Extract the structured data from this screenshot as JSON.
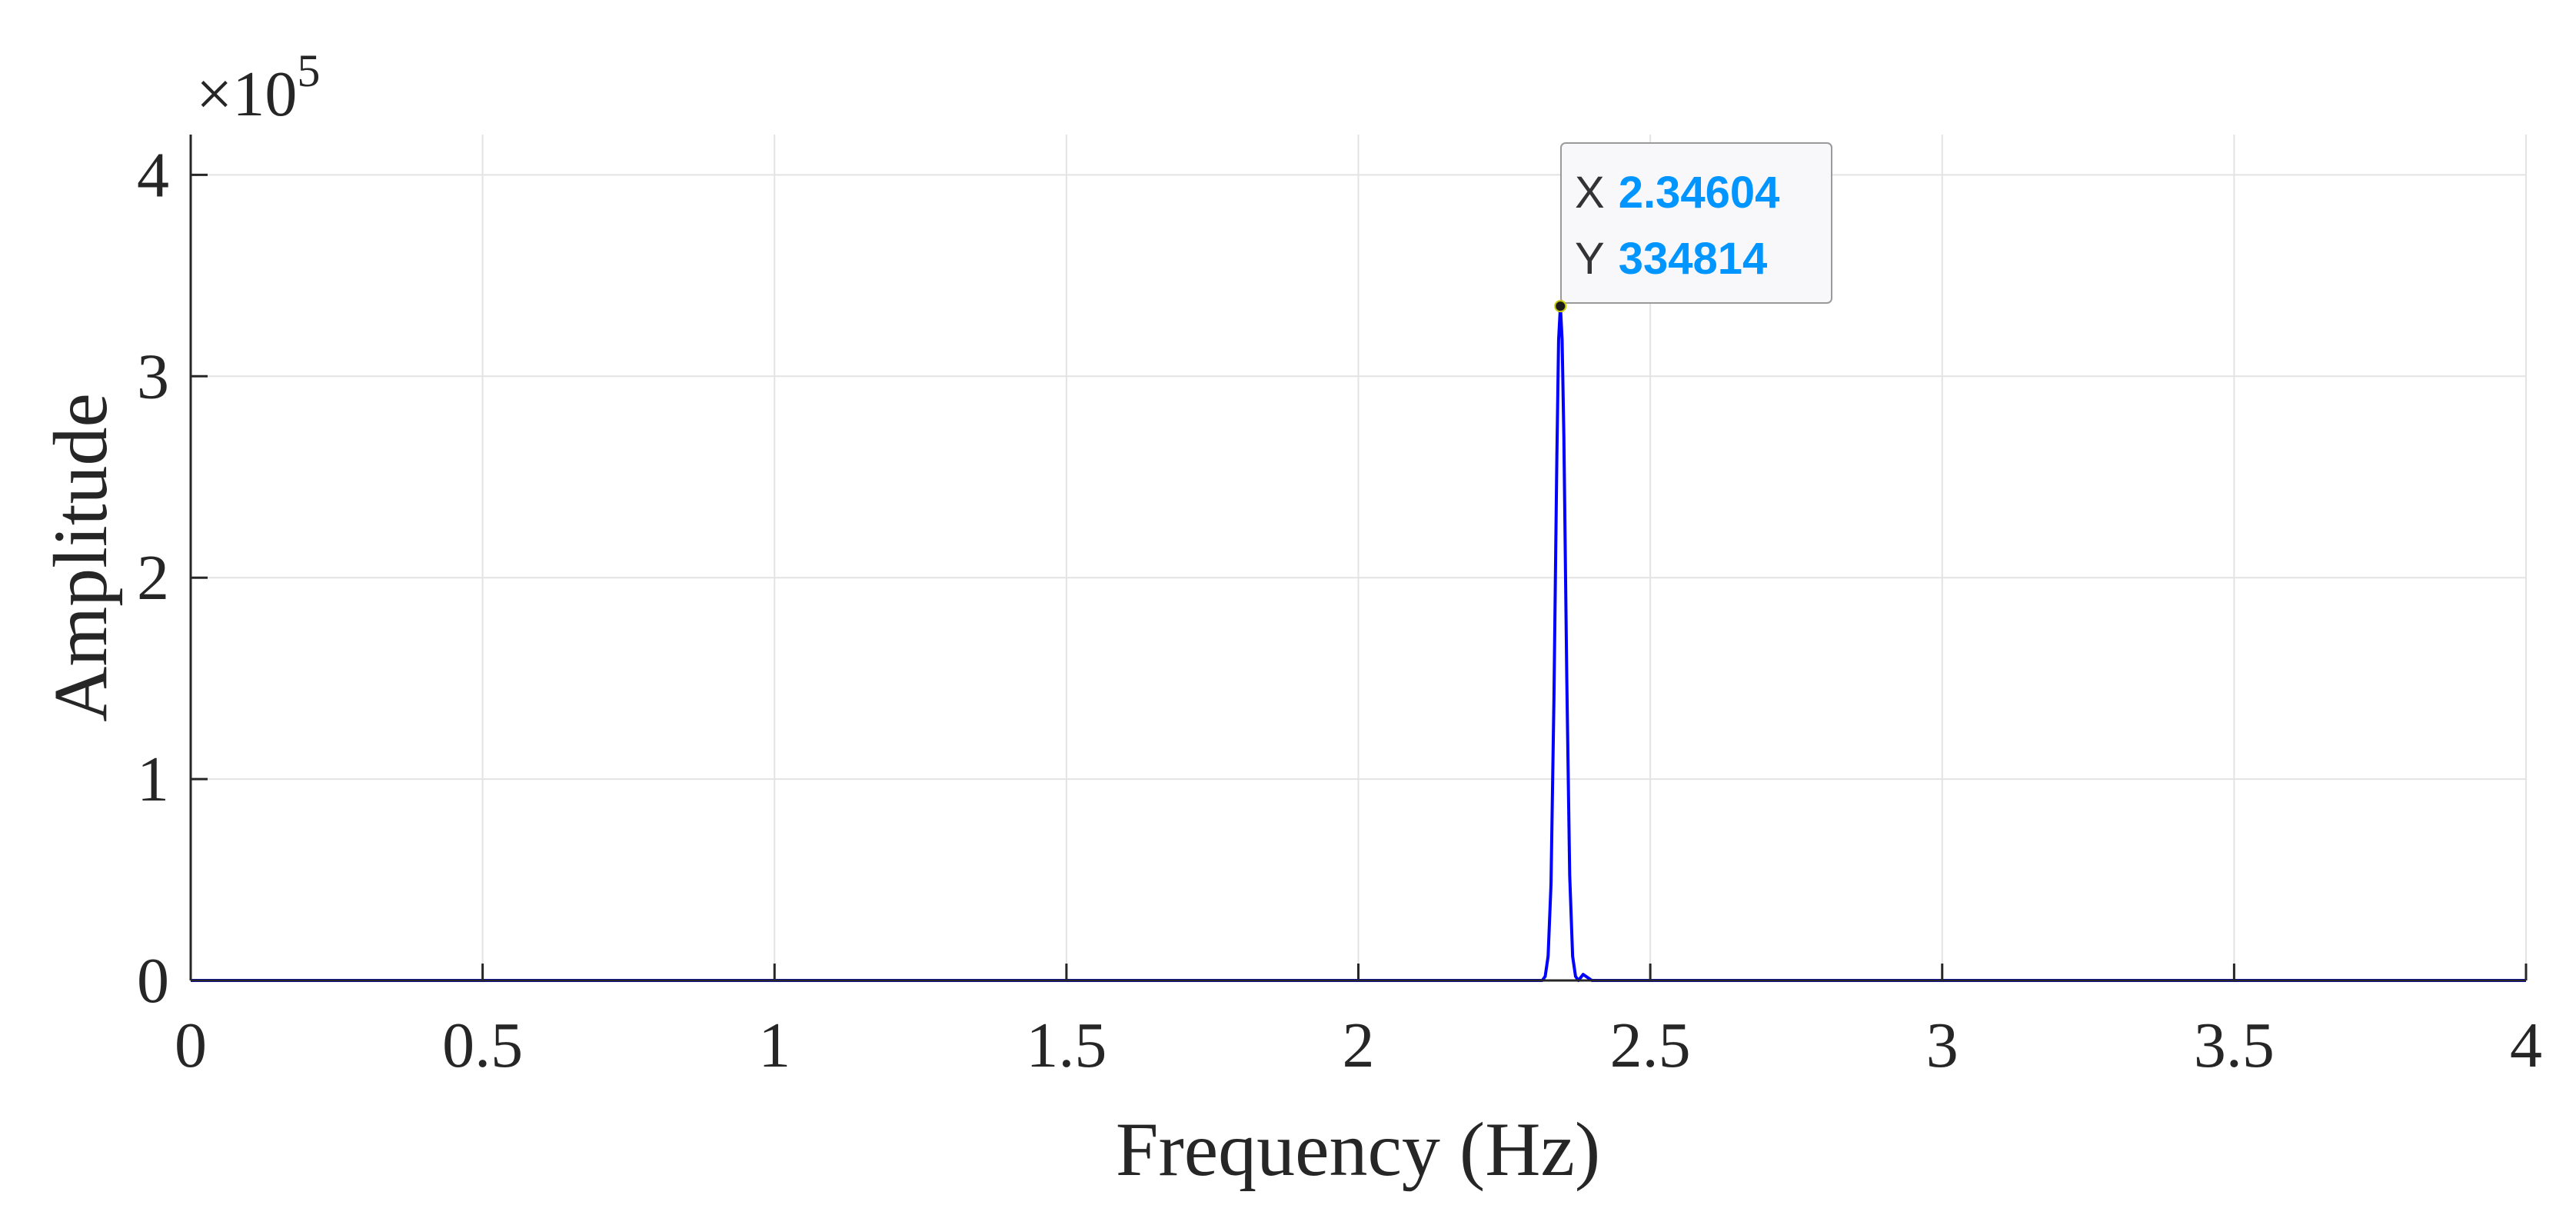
{
  "chart_data": {
    "type": "line",
    "title": "",
    "xlabel": "Frequency (Hz)",
    "ylabel": "Amplitude",
    "xlim": [
      0,
      4
    ],
    "ylim": [
      0,
      420000
    ],
    "x_ticks": [
      0,
      0.5,
      1,
      1.5,
      2,
      2.5,
      3,
      3.5,
      4
    ],
    "x_tick_labels": [
      "0",
      "0.5",
      "1",
      "1.5",
      "2",
      "2.5",
      "3",
      "3.5",
      "4"
    ],
    "y_ticks": [
      0,
      100000,
      200000,
      300000,
      400000
    ],
    "y_tick_labels": [
      "0",
      "1",
      "2",
      "3",
      "4"
    ],
    "y_exponent_prefix": "×10",
    "y_exponent": "5",
    "grid": true,
    "series": [
      {
        "color": "#0000ff",
        "x": [
          0,
          2.25,
          2.3,
          2.315,
          2.32,
          2.325,
          2.33,
          2.335,
          2.34,
          2.343,
          2.34604,
          2.349,
          2.352,
          2.357,
          2.362,
          2.367,
          2.372,
          2.377,
          2.385,
          2.4,
          2.45,
          4
        ],
        "y": [
          0,
          0,
          0,
          0,
          2000,
          12000,
          48000,
          140000,
          260000,
          318000,
          334814,
          318000,
          270000,
          150000,
          52000,
          12000,
          2000,
          0,
          3000,
          0,
          0,
          0
        ]
      }
    ],
    "datatip": {
      "x_key": "X",
      "x_value": "2.34604",
      "y_key": "Y",
      "y_value": "334814",
      "point_x": 2.34604,
      "point_y": 334814,
      "value_color": "#0095ff"
    }
  }
}
